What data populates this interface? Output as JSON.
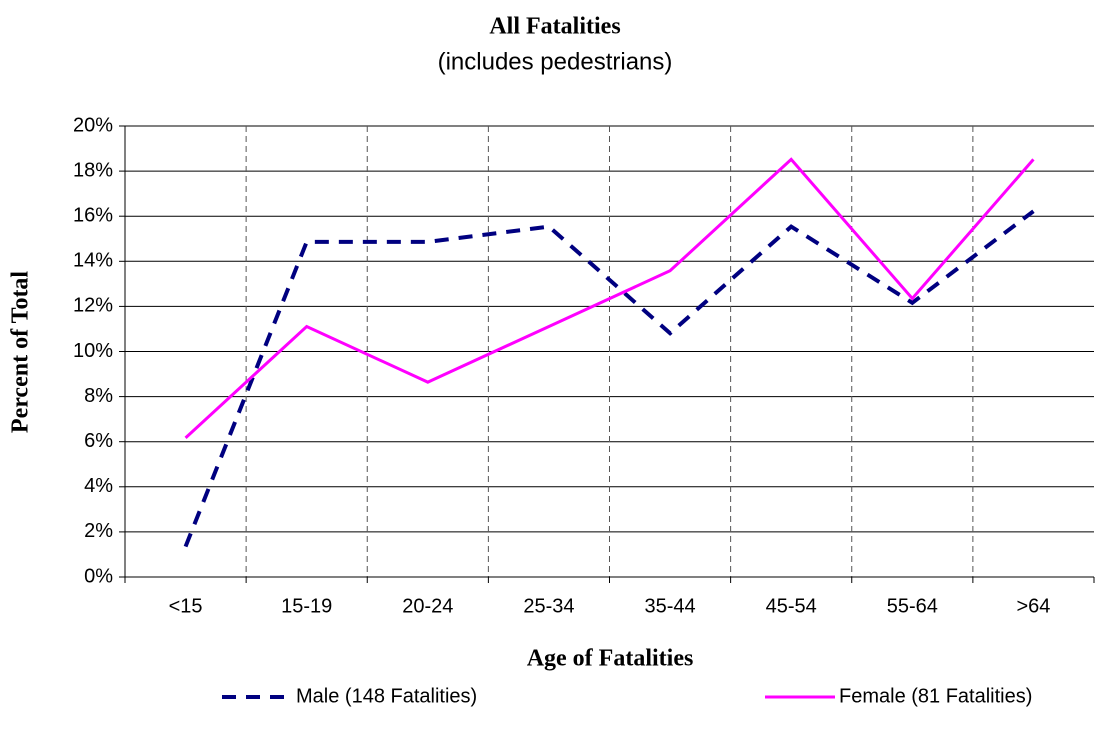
{
  "chart_data": {
    "type": "line",
    "title": "All Fatalities",
    "subtitle": "(includes pedestrians)",
    "x_label": "Age of Fatalities",
    "y_label": "Percent of Total",
    "categories": [
      "<15",
      "15-19",
      "20-24",
      "25-34",
      "35-44",
      "45-54",
      "55-64",
      ">64"
    ],
    "series": [
      {
        "name": "Male (148 Fatalities)",
        "color": "#000080",
        "dash": true,
        "values": [
          1.35,
          14.86,
          14.86,
          15.54,
          10.81,
          15.54,
          12.16,
          16.22
        ]
      },
      {
        "name": "Female (81 Fatalities)",
        "color": "#ff00ff",
        "dash": false,
        "values": [
          6.17,
          11.11,
          8.64,
          11.11,
          13.58,
          18.52,
          12.35,
          18.52
        ]
      }
    ],
    "ylim": [
      0,
      20
    ],
    "yticks": [
      {
        "value": 0,
        "label": "0%"
      },
      {
        "value": 2,
        "label": "2%"
      },
      {
        "value": 4,
        "label": "4%"
      },
      {
        "value": 6,
        "label": "6%"
      },
      {
        "value": 8,
        "label": "8%"
      },
      {
        "value": 10,
        "label": "10%"
      },
      {
        "value": 12,
        "label": "12%"
      },
      {
        "value": 14,
        "label": "14%"
      },
      {
        "value": 16,
        "label": "16%"
      },
      {
        "value": 18,
        "label": "18%"
      },
      {
        "value": 20,
        "label": "20%"
      }
    ],
    "grid": true,
    "legend": "bottom"
  }
}
